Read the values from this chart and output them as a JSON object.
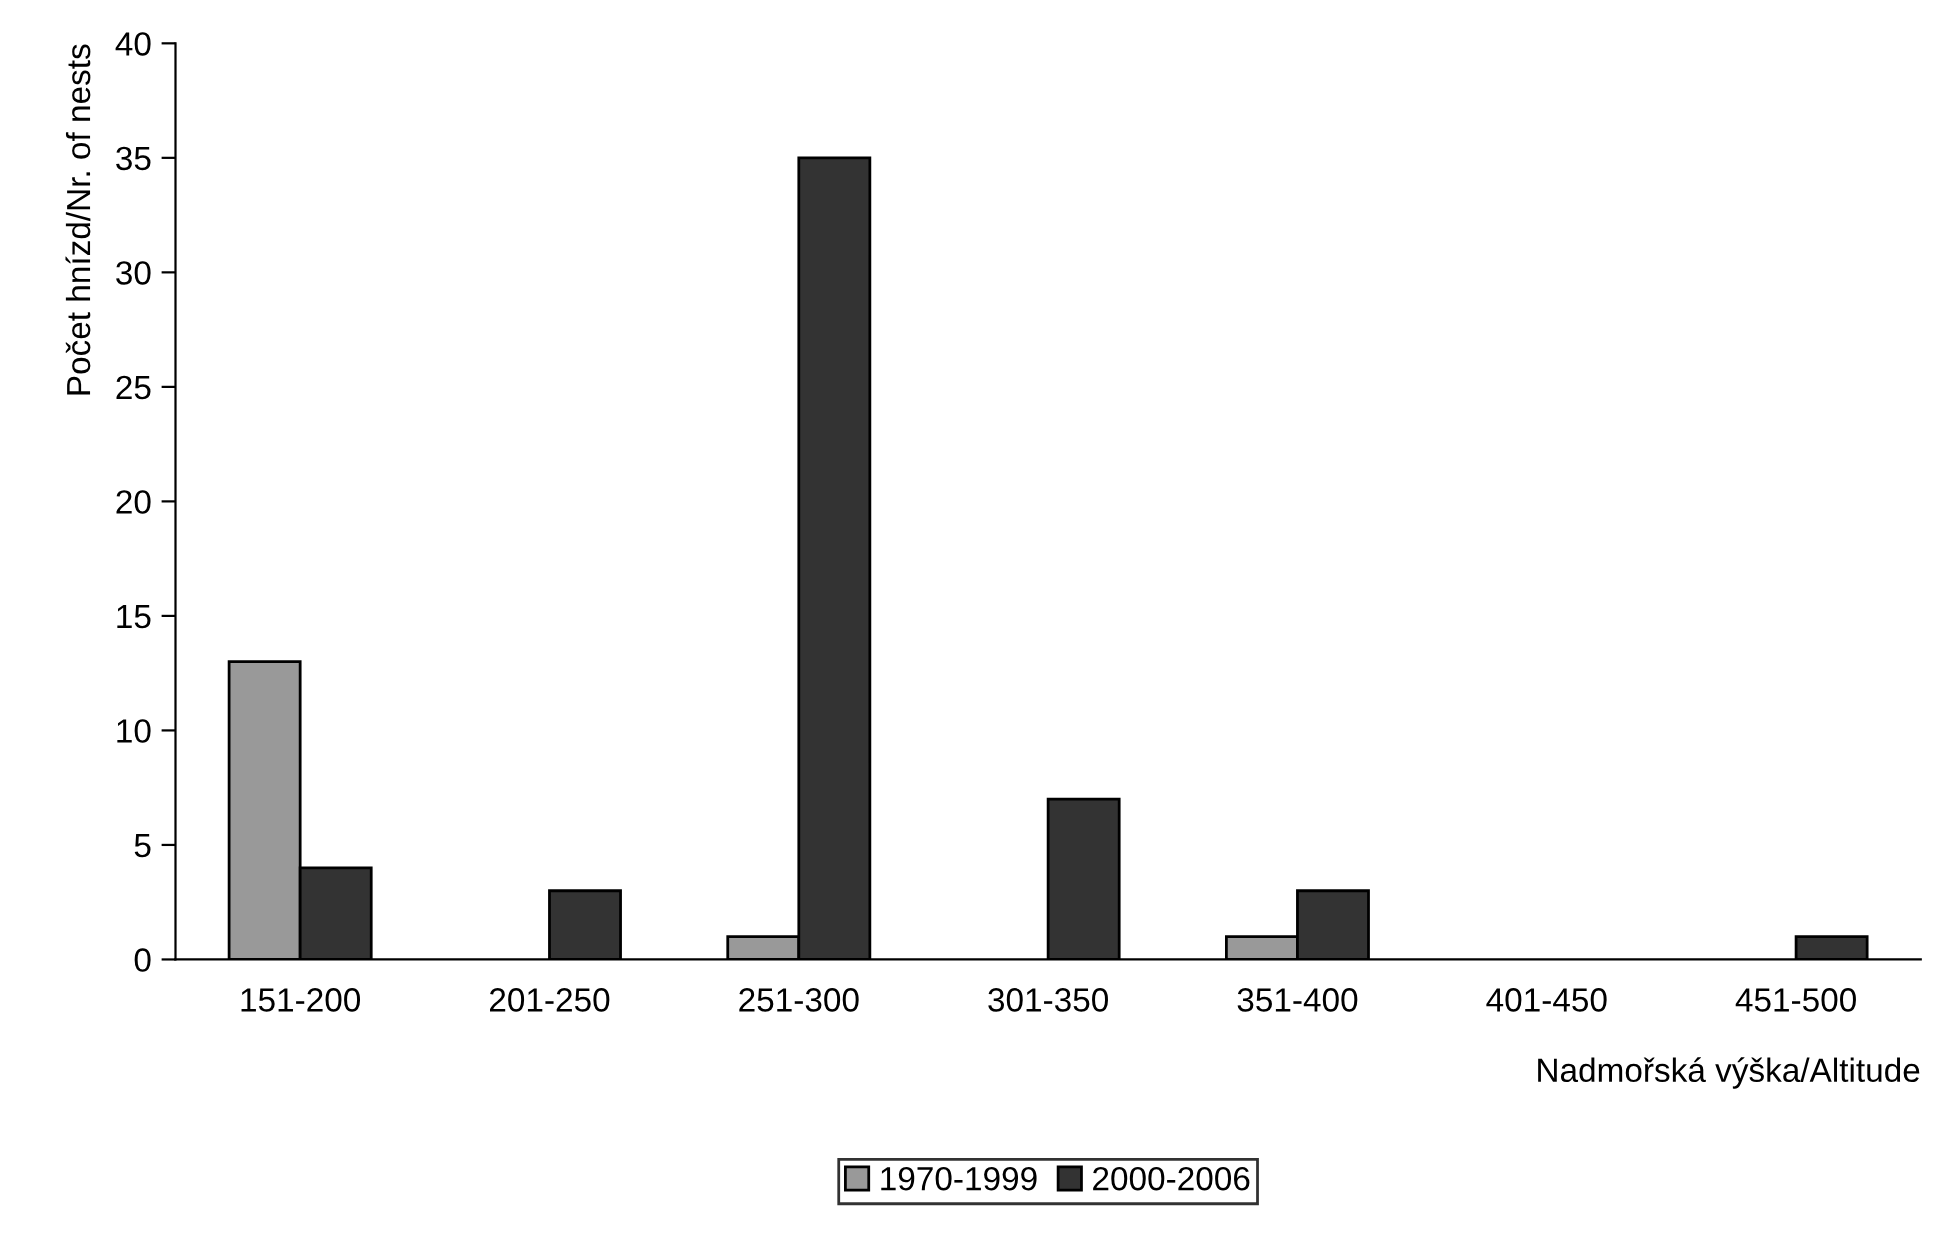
{
  "chart_data": {
    "type": "bar",
    "xlabel": "Nadmořská výška/Altitude",
    "ylabel": "Počet hnízd/Nr. of nests",
    "categories": [
      "151-200",
      "201-250",
      "251-300",
      "301-350",
      "351-400",
      "401-450",
      "451-500"
    ],
    "series": [
      {
        "name": "1970-1999",
        "color": "#999999",
        "values": [
          13,
          null,
          1,
          null,
          1,
          null,
          null
        ]
      },
      {
        "name": "2000-2006",
        "color": "#333333",
        "values": [
          4,
          3,
          35,
          7,
          3,
          null,
          1
        ]
      }
    ],
    "ylim": [
      0,
      40
    ],
    "yticks": [
      0,
      5,
      10,
      15,
      20,
      25,
      30,
      35,
      40
    ],
    "grid": false,
    "legend": "bottom"
  }
}
